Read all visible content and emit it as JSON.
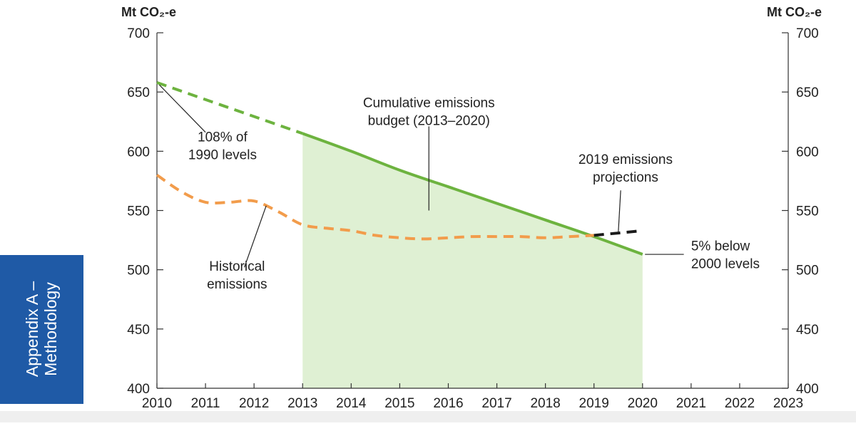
{
  "side_tab": {
    "line1": "Appendix A –",
    "line2": "Methodology"
  },
  "colors": {
    "budget_line": "#6db33f",
    "budget_fill": "#dff0d3",
    "historical": "#f29c4b",
    "projection": "#1a1a1a",
    "axis": "#333333",
    "tab": "#1f5aa6"
  },
  "chart_data": {
    "type": "line",
    "title": "",
    "xlabel": "",
    "ylabel": "Mt CO₂-e",
    "ylabel_right": "Mt CO₂-e",
    "xlim": [
      2010,
      2023
    ],
    "ylim": [
      400,
      700
    ],
    "x_ticks": [
      2010,
      2011,
      2012,
      2013,
      2014,
      2015,
      2016,
      2017,
      2018,
      2019,
      2020,
      2021,
      2022,
      2023
    ],
    "y_ticks": [
      400,
      450,
      500,
      550,
      600,
      650,
      700
    ],
    "grid": false,
    "legend": "none",
    "series": [
      {
        "style": "dashed",
        "color": "#6db33f",
        "points": [
          [
            2010,
            658
          ],
          [
            2013,
            615
          ]
        ]
      },
      {
        "style": "solid",
        "color": "#6db33f",
        "fill_below": true,
        "points": [
          [
            2013,
            615
          ],
          [
            2014,
            600
          ],
          [
            2015,
            584
          ],
          [
            2016,
            570
          ],
          [
            2017,
            556
          ],
          [
            2018,
            542
          ],
          [
            2019,
            528
          ],
          [
            2020,
            513
          ]
        ]
      },
      {
        "style": "dashed",
        "color": "#f29c4b",
        "points": [
          [
            2010,
            580
          ],
          [
            2010.5,
            566
          ],
          [
            2011,
            557
          ],
          [
            2011.5,
            557
          ],
          [
            2012,
            558
          ],
          [
            2012.5,
            549
          ],
          [
            2013,
            538
          ],
          [
            2013.5,
            535
          ],
          [
            2014,
            533
          ],
          [
            2014.5,
            529
          ],
          [
            2015,
            527
          ],
          [
            2015.5,
            526
          ],
          [
            2016,
            527
          ],
          [
            2016.5,
            528
          ],
          [
            2017,
            528
          ],
          [
            2017.5,
            528
          ],
          [
            2018,
            527
          ],
          [
            2018.5,
            528
          ],
          [
            2019,
            529
          ]
        ]
      },
      {
        "style": "dashed",
        "color": "#1a1a1a",
        "points": [
          [
            2019,
            529
          ],
          [
            2020,
            533
          ]
        ]
      }
    ],
    "annotations": [
      {
        "id": "budget",
        "lines": [
          "Cumulative emissions",
          "budget (2013–2020)"
        ],
        "label_at": [
          2015.6,
          634
        ],
        "anchor": "middle",
        "leader_from": [
          2015.6,
          621
        ],
        "leader_to": [
          2015.6,
          550
        ]
      },
      {
        "id": "108",
        "lines": [
          "108% of",
          "1990 levels"
        ],
        "label_at": [
          2011.35,
          605
        ],
        "anchor": "middle",
        "leader_from": [
          2011.0,
          616
        ],
        "leader_to": [
          2010.05,
          656
        ]
      },
      {
        "id": "historical",
        "lines": [
          "Historical",
          "emissions"
        ],
        "label_at": [
          2011.65,
          496
        ],
        "anchor": "middle",
        "leader_from": [
          2011.8,
          502
        ],
        "leader_to": [
          2012.25,
          554
        ]
      },
      {
        "id": "projection",
        "lines": [
          "2019 emissions",
          "projections"
        ],
        "label_at": [
          2019.65,
          586
        ],
        "anchor": "middle",
        "leader_from": [
          2019.55,
          567
        ],
        "leader_to": [
          2019.5,
          531
        ]
      },
      {
        "id": "fivepct",
        "lines": [
          "5% below",
          "2000 levels"
        ],
        "label_at": [
          2021.0,
          513
        ],
        "anchor": "start",
        "leader_from": [
          2020.85,
          513
        ],
        "leader_to": [
          2020.05,
          513
        ]
      }
    ]
  }
}
